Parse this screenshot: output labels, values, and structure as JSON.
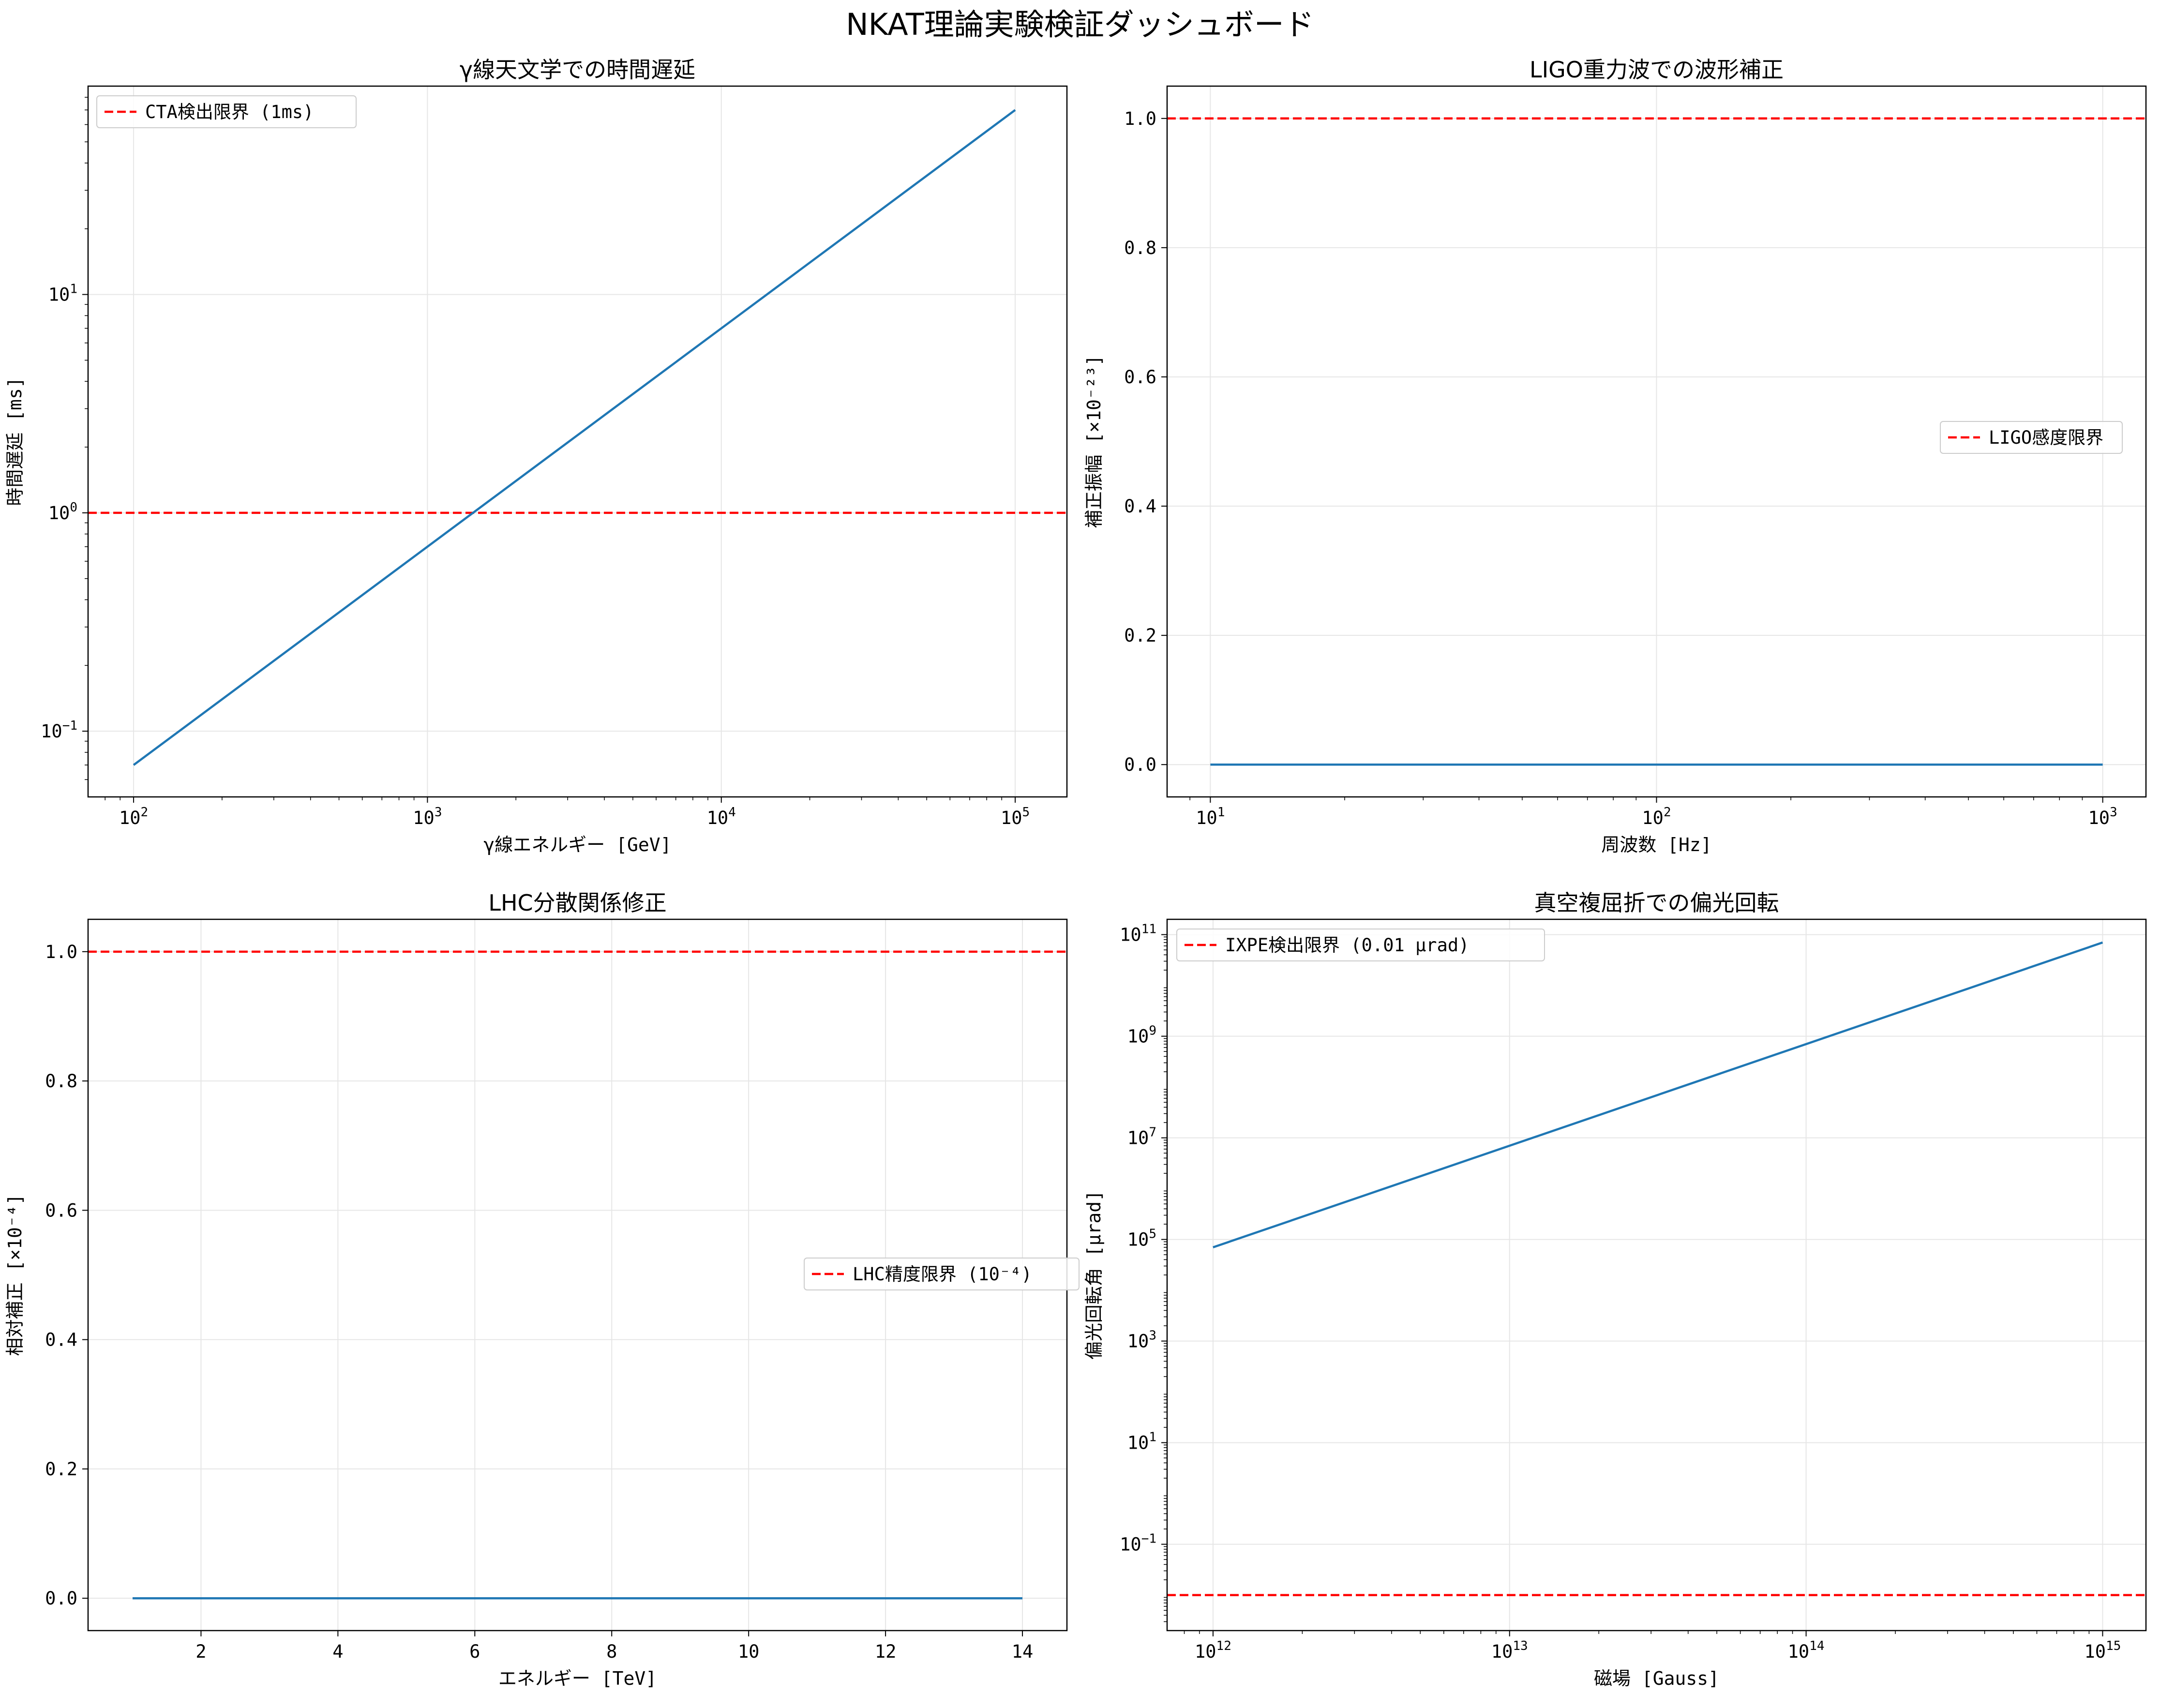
{
  "figure": {
    "suptitle": "NKAT理論実験検証ダッシュボード"
  },
  "colors": {
    "series": "#1f77b4",
    "limit": "#ff0000",
    "grid": "#e6e6e6"
  },
  "chart_data": [
    {
      "type": "line",
      "title": "γ線天文学での時間遅延",
      "xlabel": "γ線エネルギー [GeV]",
      "ylabel": "時間遅延 [ms]",
      "xscale": "log",
      "yscale": "log",
      "xlim": [
        70,
        150000
      ],
      "ylim": [
        0.05,
        90
      ],
      "xticks": [
        {
          "v": 100,
          "b": "10",
          "e": "2"
        },
        {
          "v": 1000,
          "b": "10",
          "e": "3"
        },
        {
          "v": 10000,
          "b": "10",
          "e": "4"
        },
        {
          "v": 100000,
          "b": "10",
          "e": "5"
        }
      ],
      "yticks": [
        {
          "v": 0.1,
          "b": "10",
          "e": "−1"
        },
        {
          "v": 1,
          "b": "10",
          "e": "0"
        },
        {
          "v": 10,
          "b": "10",
          "e": "1"
        }
      ],
      "grid": true,
      "series": [
        {
          "x": [
            100,
            100000
          ],
          "y": [
            0.07,
            70
          ]
        }
      ],
      "hlines": [
        {
          "y": 1,
          "name": "CTA検出限界 (1ms)"
        }
      ],
      "legend": "top-left"
    },
    {
      "type": "line",
      "title": "LIGO重力波での波形補正",
      "xlabel": "周波数 [Hz]",
      "ylabel": "補正振幅 [×10⁻²³]",
      "xscale": "log",
      "yscale": "linear",
      "xlim": [
        8,
        1250
      ],
      "ylim": [
        -0.05,
        1.05
      ],
      "xticks": [
        {
          "v": 10,
          "b": "10",
          "e": "1"
        },
        {
          "v": 100,
          "b": "10",
          "e": "2"
        },
        {
          "v": 1000,
          "b": "10",
          "e": "3"
        }
      ],
      "yticks": [
        {
          "v": 0,
          "t": "0.0"
        },
        {
          "v": 0.2,
          "t": "0.2"
        },
        {
          "v": 0.4,
          "t": "0.4"
        },
        {
          "v": 0.6,
          "t": "0.6"
        },
        {
          "v": 0.8,
          "t": "0.8"
        },
        {
          "v": 1,
          "t": "1.0"
        }
      ],
      "grid": true,
      "series": [
        {
          "x": [
            10,
            1000
          ],
          "y": [
            0,
            0
          ]
        }
      ],
      "hlines": [
        {
          "y": 1,
          "name": "LIGO感度限界"
        }
      ],
      "legend": "center-right"
    },
    {
      "type": "line",
      "title": "LHC分散関係修正",
      "xlabel": "エネルギー [TeV]",
      "ylabel": "相対補正 [×10⁻⁴]",
      "xscale": "linear",
      "yscale": "linear",
      "xlim": [
        0.35,
        14.65
      ],
      "ylim": [
        -0.05,
        1.05
      ],
      "xticks": [
        {
          "v": 2,
          "t": "2"
        },
        {
          "v": 4,
          "t": "4"
        },
        {
          "v": 6,
          "t": "6"
        },
        {
          "v": 8,
          "t": "8"
        },
        {
          "v": 10,
          "t": "10"
        },
        {
          "v": 12,
          "t": "12"
        },
        {
          "v": 14,
          "t": "14"
        }
      ],
      "yticks": [
        {
          "v": 0,
          "t": "0.0"
        },
        {
          "v": 0.2,
          "t": "0.2"
        },
        {
          "v": 0.4,
          "t": "0.4"
        },
        {
          "v": 0.6,
          "t": "0.6"
        },
        {
          "v": 0.8,
          "t": "0.8"
        },
        {
          "v": 1,
          "t": "1.0"
        }
      ],
      "grid": true,
      "series": [
        {
          "x": [
            1,
            14
          ],
          "y": [
            0,
            0
          ]
        }
      ],
      "hlines": [
        {
          "y": 1,
          "name": "LHC精度限界 (10⁻⁴)"
        }
      ],
      "legend": "center-right"
    },
    {
      "type": "line",
      "title": "真空複屈折での偏光回転",
      "xlabel": "磁場 [Gauss]",
      "ylabel": "偏光回転角 [μrad]",
      "xscale": "log",
      "yscale": "log",
      "xlim": [
        700000000000.0,
        1400000000000000.0
      ],
      "ylim": [
        0.002,
        200000000000.0
      ],
      "xticks": [
        {
          "v": 1000000000000.0,
          "b": "10",
          "e": "12"
        },
        {
          "v": 10000000000000.0,
          "b": "10",
          "e": "13"
        },
        {
          "v": 100000000000000.0,
          "b": "10",
          "e": "14"
        },
        {
          "v": 1000000000000000.0,
          "b": "10",
          "e": "15"
        }
      ],
      "yticks": [
        {
          "v": 0.1,
          "b": "10",
          "e": "−1"
        },
        {
          "v": 10,
          "b": "10",
          "e": "1"
        },
        {
          "v": 1000,
          "b": "10",
          "e": "3"
        },
        {
          "v": 100000,
          "b": "10",
          "e": "5"
        },
        {
          "v": 10000000,
          "b": "10",
          "e": "7"
        },
        {
          "v": 1000000000,
          "b": "10",
          "e": "9"
        },
        {
          "v": 100000000000,
          "b": "10",
          "e": "11"
        }
      ],
      "grid": true,
      "series": [
        {
          "x": [
            1000000000000.0,
            1000000000000000.0
          ],
          "y": [
            70000,
            70000000000.0
          ]
        }
      ],
      "hlines": [
        {
          "y": 0.01,
          "name": "IXPE検出限界 (0.01 μrad)"
        }
      ],
      "legend": "top-left"
    }
  ]
}
